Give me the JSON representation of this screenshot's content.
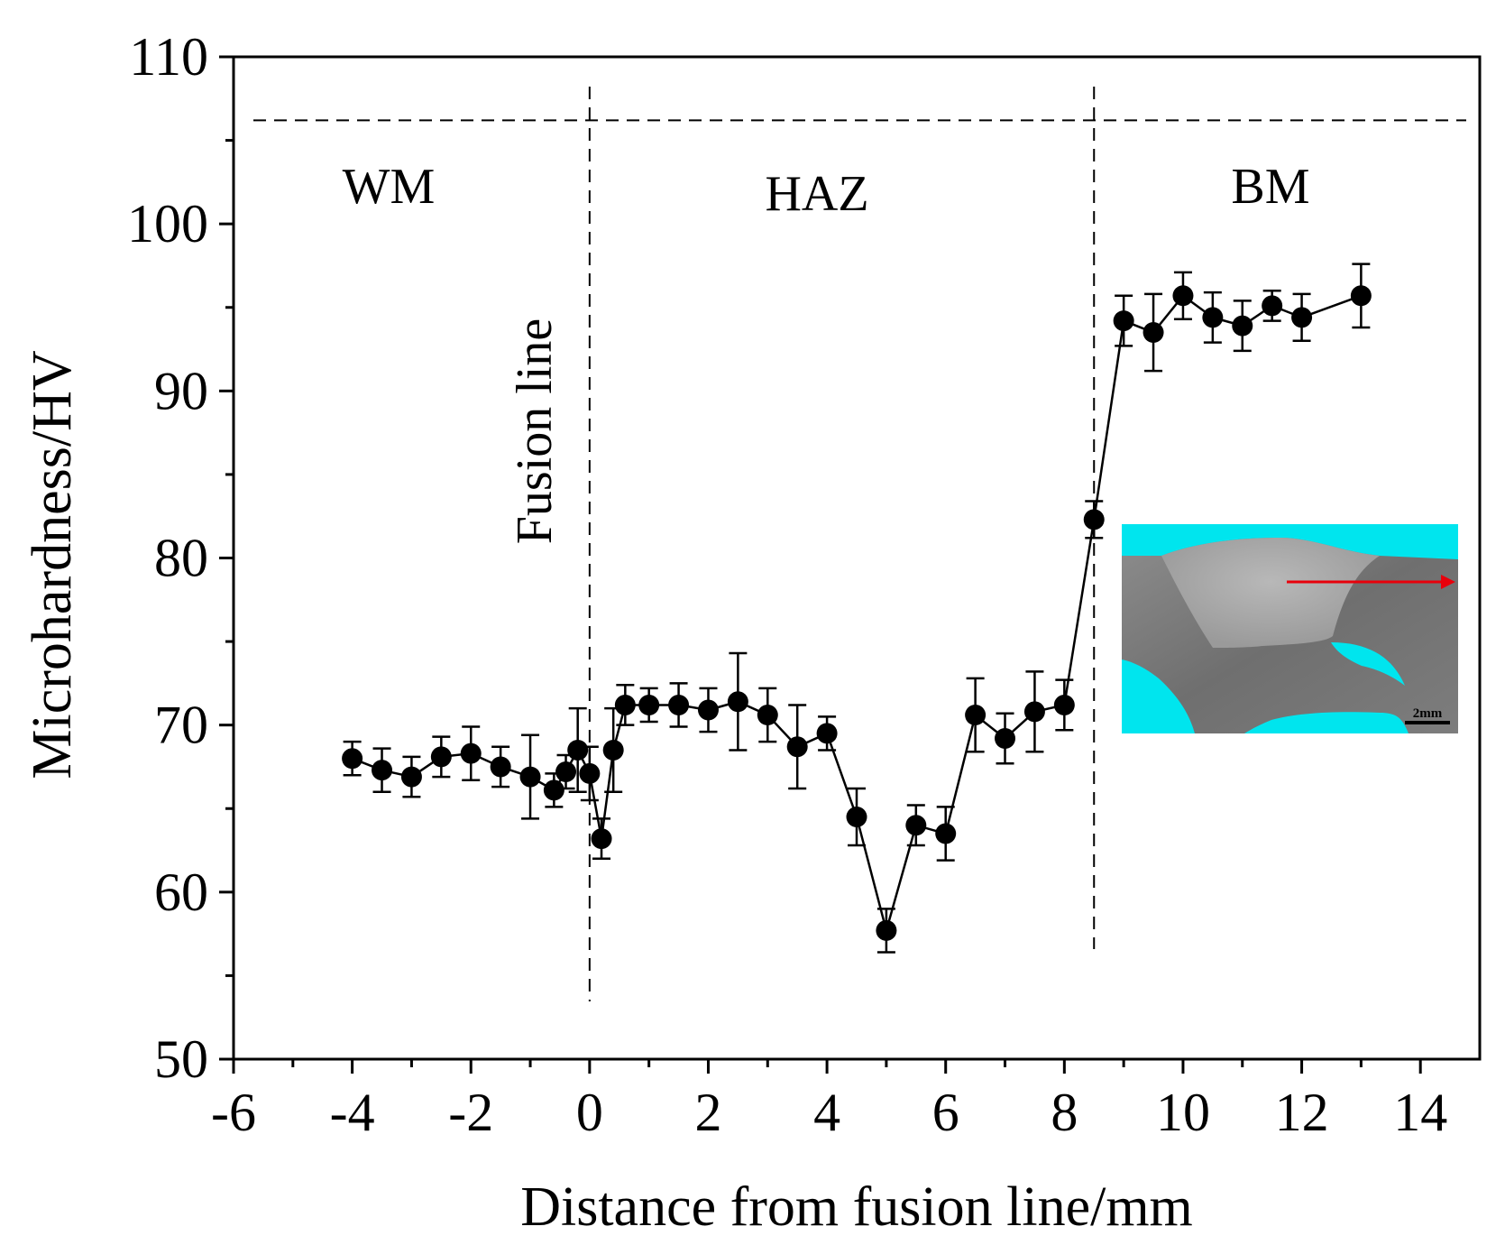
{
  "chart_data": {
    "type": "line",
    "title": "",
    "xlabel": "Distance from fusion line/mm",
    "ylabel": "Microhardness/HV",
    "xlim": [
      -6,
      15
    ],
    "ylim": [
      50,
      110
    ],
    "x_ticks": [
      -6,
      -4,
      -2,
      0,
      2,
      4,
      6,
      8,
      10,
      12,
      14
    ],
    "x_tick_labels": [
      "-6",
      "-4",
      "-2",
      "0",
      "2",
      "4",
      "6",
      "8",
      "10",
      "12",
      "14"
    ],
    "y_ticks": [
      50,
      60,
      70,
      80,
      90,
      100,
      110
    ],
    "y_tick_labels": [
      "50",
      "60",
      "70",
      "80",
      "90",
      "100",
      "110"
    ],
    "grid": false,
    "series": [
      {
        "name": "Microhardness",
        "marker": "filled-circle",
        "x": [
          -4,
          -3.5,
          -3,
          -2.5,
          -2,
          -1.5,
          -1,
          -0.6,
          -0.4,
          -0.2,
          0,
          0.2,
          0.4,
          0.6,
          1,
          1.5,
          2,
          2.5,
          3,
          3.5,
          4,
          4.5,
          5,
          5.5,
          6,
          6.5,
          7,
          7.5,
          8,
          8.5,
          9,
          9.5,
          10,
          10.5,
          11,
          11.5,
          12,
          13
        ],
        "values": [
          68.0,
          67.3,
          66.9,
          68.1,
          68.3,
          67.5,
          66.9,
          66.1,
          67.2,
          68.5,
          67.1,
          63.2,
          68.5,
          71.2,
          71.2,
          71.2,
          70.9,
          71.4,
          70.6,
          68.7,
          69.5,
          64.5,
          57.7,
          64.0,
          63.5,
          70.6,
          69.2,
          70.8,
          71.2,
          82.3,
          94.2,
          93.5,
          95.7,
          94.4,
          93.9,
          95.1,
          94.4,
          95.7
        ],
        "errors": [
          1.0,
          1.3,
          1.2,
          1.2,
          1.6,
          1.2,
          2.5,
          1.0,
          1.0,
          2.5,
          1.6,
          1.2,
          2.5,
          1.2,
          1.0,
          1.3,
          1.3,
          2.9,
          1.6,
          2.5,
          1.0,
          1.7,
          1.3,
          1.2,
          1.6,
          2.2,
          1.5,
          2.4,
          1.5,
          1.1,
          1.5,
          2.3,
          1.4,
          1.5,
          1.5,
          0.9,
          1.4,
          1.9
        ]
      }
    ],
    "reference_lines": [
      {
        "orientation": "vertical",
        "x": 0,
        "style": "dashed"
      },
      {
        "orientation": "vertical",
        "x": 8.5,
        "style": "dashed"
      },
      {
        "orientation": "horizontal",
        "y": 106.2,
        "style": "dashed"
      }
    ],
    "annotations": {
      "wm": "WM",
      "haz": "HAZ",
      "bm": "BM",
      "fusion_line": "Fusion line"
    },
    "inset": {
      "description_label": "2mm",
      "arrow_color": "#e8000b",
      "background_color": "#00e5ee"
    }
  }
}
